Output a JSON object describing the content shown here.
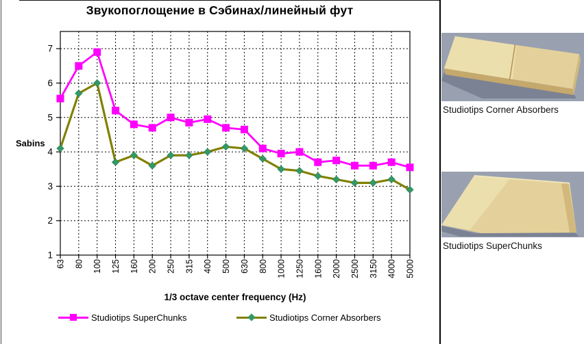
{
  "chart_data": {
    "type": "line",
    "title": "Звукопоглощение в Сэбинах/линейный фут",
    "xlabel": "1/3 octave center frequency (Hz)",
    "ylabel": "Sabins",
    "categories": [
      "63",
      "80",
      "100",
      "125",
      "160",
      "200",
      "250",
      "315",
      "400",
      "500",
      "630",
      "800",
      "1000",
      "1250",
      "1600",
      "2000",
      "2500",
      "3150",
      "4000",
      "5000"
    ],
    "series": [
      {
        "name": "Studiotips SuperChunks",
        "marker": "square",
        "line_color": "#FF00FF",
        "marker_color": "#FF00FF",
        "values": [
          5.55,
          6.5,
          6.9,
          5.2,
          4.8,
          4.7,
          5.0,
          4.85,
          4.95,
          4.7,
          4.65,
          4.1,
          3.95,
          4.0,
          3.7,
          3.75,
          3.6,
          3.6,
          3.7,
          3.55
        ]
      },
      {
        "name": "Studiotips Corner Absorbers",
        "marker": "diamond",
        "line_color": "#808000",
        "marker_color": "#339966",
        "values": [
          4.1,
          5.7,
          6.0,
          3.7,
          3.9,
          3.6,
          3.9,
          3.9,
          4.0,
          4.15,
          4.1,
          3.8,
          3.5,
          3.45,
          3.3,
          3.2,
          3.1,
          3.1,
          3.2,
          2.9
        ]
      }
    ],
    "ylim": [
      1,
      7.5
    ],
    "yticks": [
      1,
      2,
      3,
      4,
      5,
      6,
      7
    ],
    "grid": "dashed-both-axes",
    "legend_position": "bottom"
  },
  "side_panel": {
    "items": [
      {
        "caption": "Studiotips Corner Absorbers",
        "image": "flat-panel-photo"
      },
      {
        "caption": "Studiotips SuperChunks",
        "image": "wedge-block-photo"
      }
    ],
    "photo_colors": {
      "background": "#99a1b0",
      "shadow": "#7b8294",
      "board": "#e4d09a",
      "board_light": "#ecdfae",
      "board_edge": "#c4a86c",
      "board_side": "#d2b87c",
      "seam": "#b09254",
      "apex_highlight": "#f2e6bc"
    }
  }
}
